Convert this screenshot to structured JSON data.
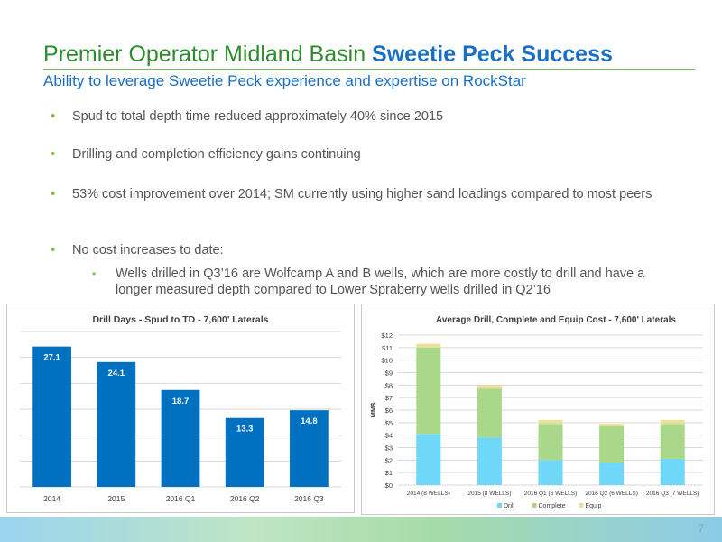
{
  "slide": {
    "title_main": "Premier Operator Midland Basin ",
    "title_accent": "Sweetie Peck Success",
    "subtitle": "Ability to leverage Sweetie Peck experience and expertise on RockStar",
    "bullets": [
      "Spud to total depth time reduced approximately 40% since 2015",
      "Drilling and completion efficiency gains continuing",
      "53% cost improvement over 2014; SM currently using higher sand loadings compared to most peers",
      "No cost increases to date:"
    ],
    "sub_bullet": "Wells drilled in Q3’16 are Wolfcamp A and B wells, which are more costly to drill and have a longer measured depth compared to Lower Spraberry wells drilled in Q2’16",
    "page_number": "7"
  },
  "colors": {
    "bar_blue": "#0070c0",
    "drill": "#6fd7f7",
    "complete": "#a9d88a",
    "equip": "#ebe09a"
  },
  "chart_data": [
    {
      "type": "bar",
      "title": "Drill Days - Spud to TD - 7,600' Laterals",
      "categories": [
        "2014",
        "2015",
        "2016 Q1",
        "2016 Q2",
        "2016 Q3"
      ],
      "values": [
        27.1,
        24.1,
        18.7,
        13.3,
        14.8
      ],
      "value_labels": [
        "27.1",
        "24.1",
        "18.7",
        "13.3",
        "14.8"
      ],
      "ylim": [
        0,
        30
      ],
      "grid": true
    },
    {
      "type": "bar",
      "stacked": true,
      "title": "Average Drill, Complete and Equip Cost - 7,600' Laterals",
      "ylabel": "MM$",
      "categories": [
        "2014 (8 WELLS)",
        "2015 (8 WELLS)",
        "2016 Q1 (6 WELLS)",
        "2016 Q2 (6 WELLS)",
        "2016 Q3 (7 WELLS)"
      ],
      "series": [
        {
          "name": "Drill",
          "values": [
            4.1,
            3.8,
            2.0,
            1.8,
            2.1
          ]
        },
        {
          "name": "Complete",
          "values": [
            6.9,
            3.9,
            2.9,
            2.9,
            2.8
          ]
        },
        {
          "name": "Equip",
          "values": [
            0.3,
            0.3,
            0.3,
            0.2,
            0.3
          ]
        }
      ],
      "yticks": [
        "$0",
        "$1",
        "$2",
        "$3",
        "$4",
        "$5",
        "$6",
        "$7",
        "$8",
        "$9",
        "$10",
        "$11",
        "$12"
      ],
      "ylim": [
        0,
        12
      ],
      "grid": true,
      "legend": "bottom"
    }
  ]
}
